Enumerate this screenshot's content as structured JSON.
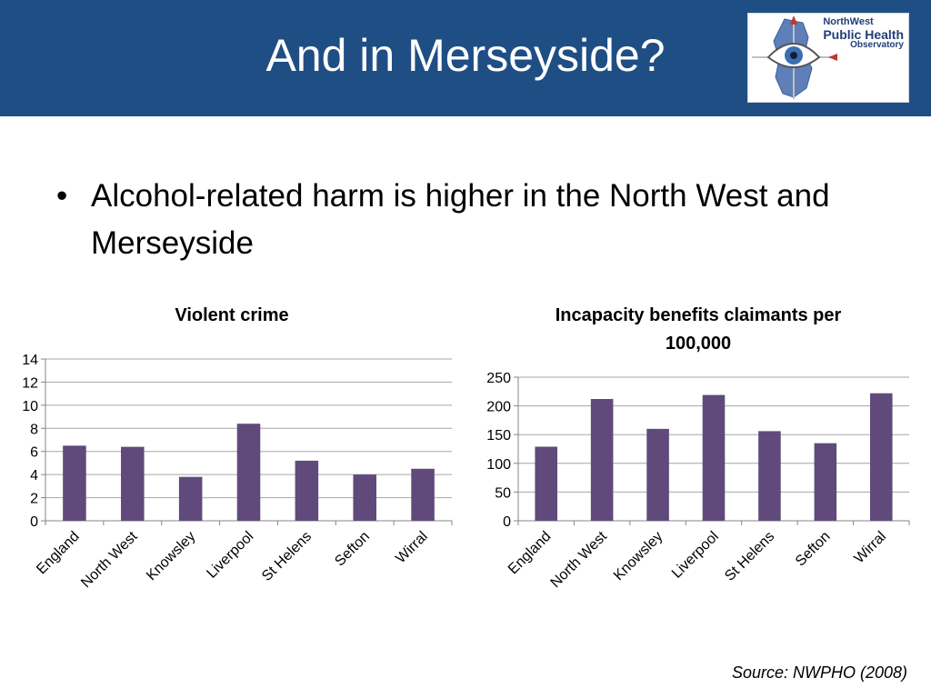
{
  "slide": {
    "title": "And in Merseyside?",
    "bullet_symbol": "•",
    "bullet": "Alcohol-related harm is higher in the North West and Merseyside",
    "source": "Source: NWPHO (2008)"
  },
  "logo": {
    "line1": "NorthWest",
    "line2": "Public Health",
    "line3": "Observatory"
  },
  "colors": {
    "header_bg": "#1f4e85",
    "bar": "#604a7b",
    "grid": "#a6a6a6"
  },
  "chart_data": [
    {
      "type": "bar",
      "title": "Violent crime",
      "categories": [
        "England",
        "North West",
        "Knowsley",
        "Liverpool",
        "St Helens",
        "Sefton",
        "Wirral"
      ],
      "values": [
        6.5,
        6.4,
        3.8,
        8.4,
        5.2,
        4.0,
        4.5
      ],
      "ylim": [
        0,
        14
      ],
      "yticks": [
        "0",
        "2",
        "4",
        "6",
        "8",
        "10",
        "12",
        "14"
      ],
      "grid": true,
      "legend": "none"
    },
    {
      "type": "bar",
      "title": "Incapacity benefits claimants per 100,000",
      "categories": [
        "England",
        "North West",
        "Knowsley",
        "Liverpool",
        "St Helens",
        "Sefton",
        "Wirral"
      ],
      "values": [
        129,
        212,
        160,
        219,
        156,
        135,
        222
      ],
      "ylim": [
        0,
        250
      ],
      "yticks": [
        "0",
        "50",
        "100",
        "150",
        "200",
        "250"
      ],
      "grid": true,
      "legend": "none"
    }
  ]
}
